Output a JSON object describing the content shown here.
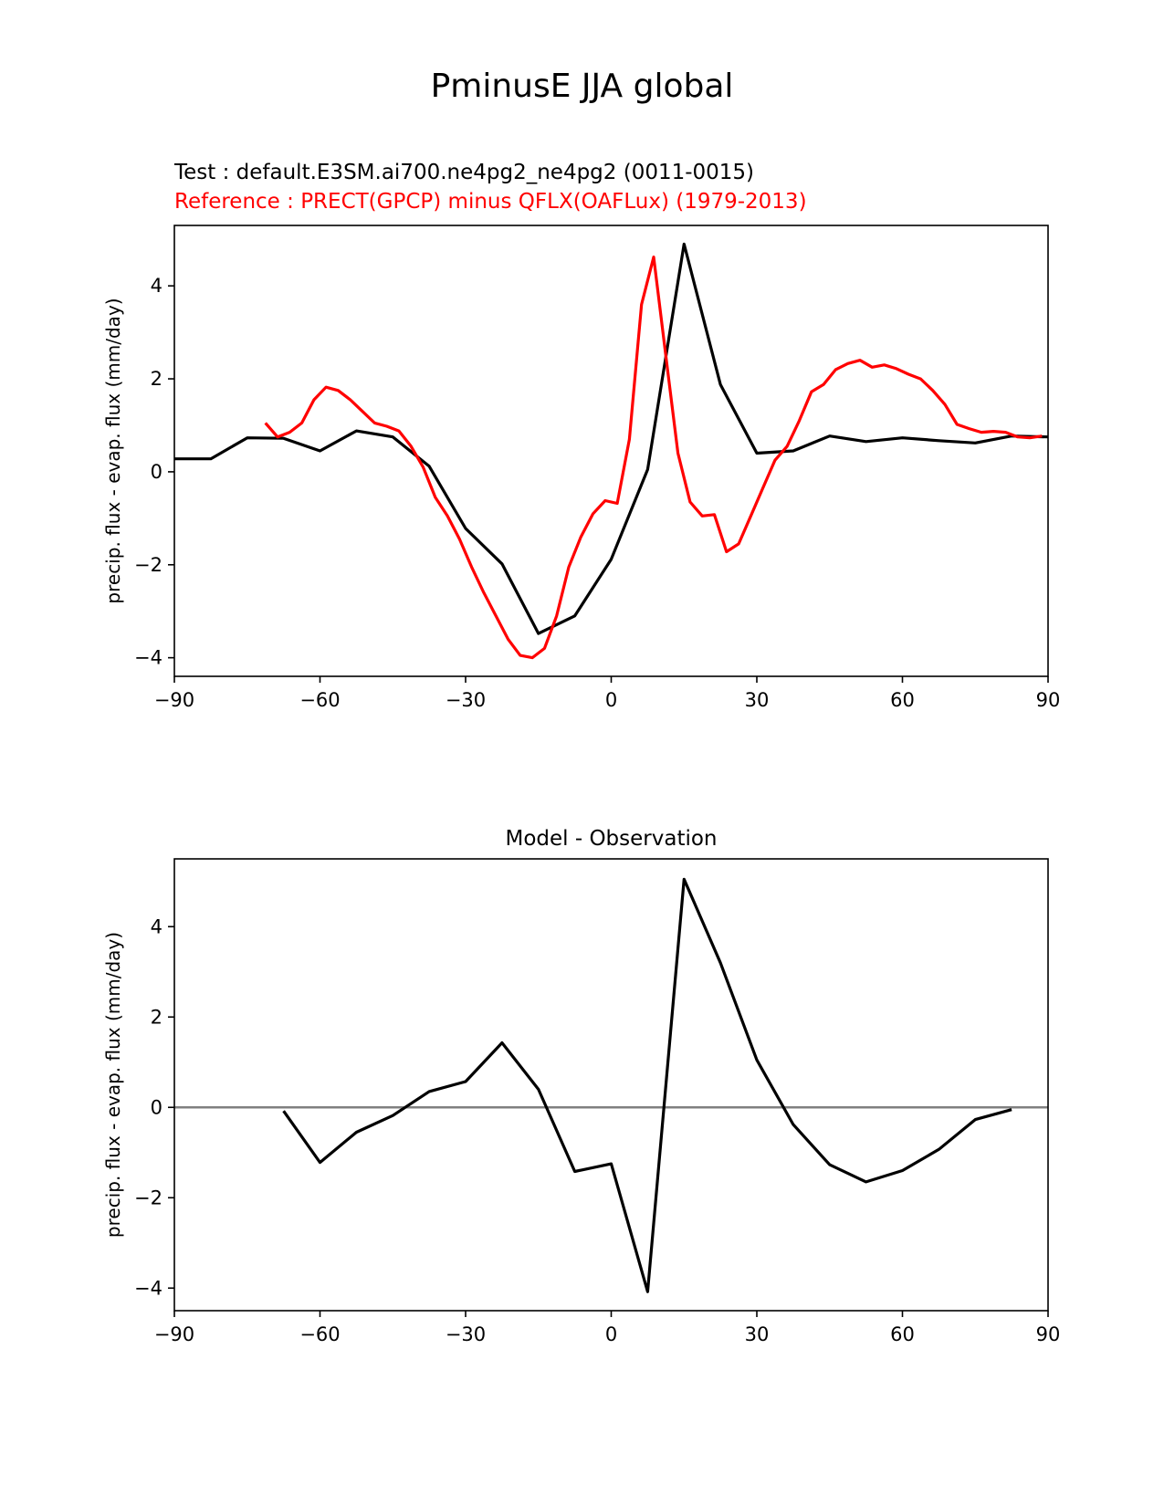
{
  "figure_title": "PminusE JJA global",
  "chart_data": [
    {
      "type": "line",
      "subtitle_test": "Test : default.E3SM.ai700.ne4pg2_ne4pg2 (0011-0015)",
      "subtitle_reference": "Reference : PRECT(GPCP) minus QFLX(OAFLux) (1979-2013)",
      "ylabel": "precip. flux - evap. flux (mm/day)",
      "xlim": [
        -90,
        90
      ],
      "ylim": [
        -4.4,
        5.3
      ],
      "xticks": [
        -90,
        -60,
        -30,
        0,
        30,
        60,
        90
      ],
      "xtick_labels": [
        "−90",
        "−60",
        "−30",
        "0",
        "30",
        "60",
        "90"
      ],
      "yticks": [
        -4,
        -2,
        0,
        2,
        4
      ],
      "ytick_labels": [
        "−4",
        "−2",
        "0",
        "2",
        "4"
      ],
      "series": [
        {
          "color": "#000000",
          "x": [
            -90,
            -82.5,
            -75,
            -67.5,
            -60,
            -52.5,
            -45,
            -37.5,
            -30,
            -22.5,
            -15,
            -7.5,
            0,
            7.5,
            15,
            22.5,
            30,
            37.5,
            45,
            52.5,
            60,
            67.5,
            75,
            82.5,
            90
          ],
          "y": [
            0.28,
            0.28,
            0.73,
            0.72,
            0.45,
            0.88,
            0.75,
            0.12,
            -1.22,
            -1.98,
            -3.48,
            -3.1,
            -1.88,
            0.05,
            4.9,
            1.88,
            0.4,
            0.45,
            0.77,
            0.65,
            0.73,
            0.67,
            0.62,
            0.77,
            0.75
          ]
        },
        {
          "color": "#ff0000",
          "x": [
            -71.25,
            -68.75,
            -66.25,
            -63.75,
            -61.25,
            -58.75,
            -56.25,
            -53.75,
            -51.25,
            -48.75,
            -46.25,
            -43.75,
            -41.25,
            -38.75,
            -36.25,
            -33.75,
            -31.25,
            -28.75,
            -26.25,
            -23.75,
            -21.25,
            -18.75,
            -16.25,
            -13.75,
            -11.25,
            -8.75,
            -6.25,
            -3.75,
            -1.25,
            1.25,
            3.75,
            6.25,
            8.75,
            11.25,
            13.75,
            16.25,
            18.75,
            21.25,
            23.75,
            26.25,
            28.75,
            31.25,
            33.75,
            36.25,
            38.75,
            41.25,
            43.75,
            46.25,
            48.75,
            51.25,
            53.75,
            56.25,
            58.75,
            61.25,
            63.75,
            66.25,
            68.75,
            71.25,
            73.75,
            76.25,
            78.75,
            81.25,
            83.75,
            86.25,
            88.75
          ],
          "y": [
            1.05,
            0.75,
            0.85,
            1.05,
            1.55,
            1.82,
            1.75,
            1.55,
            1.3,
            1.05,
            0.98,
            0.88,
            0.55,
            0.1,
            -0.55,
            -0.95,
            -1.45,
            -2.05,
            -2.6,
            -3.1,
            -3.6,
            -3.95,
            -4.0,
            -3.8,
            -3.1,
            -2.05,
            -1.4,
            -0.9,
            -0.62,
            -0.68,
            0.7,
            3.6,
            4.62,
            2.5,
            0.4,
            -0.65,
            -0.95,
            -0.92,
            -1.72,
            -1.55,
            -0.95,
            -0.35,
            0.25,
            0.55,
            1.1,
            1.72,
            1.88,
            2.2,
            2.33,
            2.4,
            2.25,
            2.3,
            2.22,
            2.1,
            2.0,
            1.75,
            1.45,
            1.02,
            0.93,
            0.85,
            0.87,
            0.85,
            0.75,
            0.73,
            0.77
          ]
        }
      ]
    },
    {
      "type": "line",
      "title": "Model - Observation",
      "ylabel": "precip. flux - evap. flux (mm/day)",
      "xlim": [
        -90,
        90
      ],
      "ylim": [
        -4.5,
        5.5
      ],
      "xticks": [
        -90,
        -60,
        -30,
        0,
        30,
        60,
        90
      ],
      "xtick_labels": [
        "−90",
        "−60",
        "−30",
        "0",
        "30",
        "60",
        "90"
      ],
      "yticks": [
        -4,
        -2,
        0,
        2,
        4
      ],
      "ytick_labels": [
        "−4",
        "−2",
        "0",
        "2",
        "4"
      ],
      "zero_line": {
        "y": 0,
        "color": "#808080"
      },
      "series": [
        {
          "color": "#000000",
          "x": [
            -67.5,
            -60,
            -52.5,
            -45,
            -37.5,
            -30,
            -22.5,
            -15,
            -7.5,
            0,
            7.5,
            15,
            22.5,
            30,
            37.5,
            45,
            52.5,
            60,
            67.5,
            75,
            82.5
          ],
          "y": [
            -0.08,
            -1.22,
            -0.55,
            -0.18,
            0.35,
            0.57,
            1.43,
            0.4,
            -1.42,
            -1.25,
            -4.08,
            5.05,
            3.2,
            1.05,
            -0.38,
            -1.27,
            -1.65,
            -1.4,
            -0.93,
            -0.27,
            -0.05
          ]
        }
      ]
    }
  ]
}
